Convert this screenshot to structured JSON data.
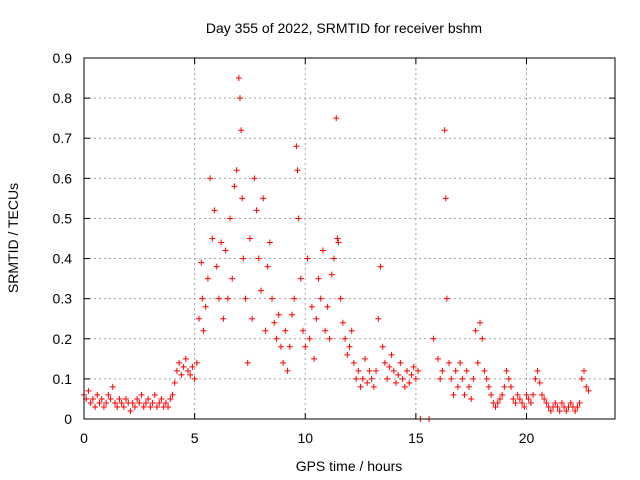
{
  "chart_data": {
    "type": "scatter",
    "title": "Day 355 of 2022, SRMTID for receiver bshm",
    "xlabel": "GPS time / hours",
    "ylabel": "SRMTID / TECUs",
    "xlim": [
      0,
      24
    ],
    "ylim": [
      0,
      0.9
    ],
    "xticks": [
      0,
      5,
      10,
      15,
      20
    ],
    "xtick_labels": [
      "0",
      "5",
      "10",
      "15",
      "20"
    ],
    "yticks": [
      0,
      0.1,
      0.2,
      0.3,
      0.4,
      0.5,
      0.6,
      0.7,
      0.8,
      0.9
    ],
    "ytick_labels": [
      "0",
      "0.1",
      "0.2",
      "0.3",
      "0.4",
      "0.5",
      "0.6",
      "0.7",
      "0.8",
      "0.9"
    ],
    "grid": true,
    "marker": "+",
    "color": "#ff0000",
    "series": [
      {
        "name": "SRMTID",
        "x": [
          0.0,
          0.1,
          0.2,
          0.3,
          0.4,
          0.5,
          0.6,
          0.7,
          0.8,
          0.9,
          1.0,
          1.1,
          1.2,
          1.3,
          1.4,
          1.5,
          1.6,
          1.7,
          1.8,
          1.9,
          2.0,
          2.1,
          2.2,
          2.3,
          2.4,
          2.5,
          2.6,
          2.7,
          2.8,
          2.9,
          3.0,
          3.1,
          3.2,
          3.3,
          3.4,
          3.5,
          3.6,
          3.7,
          3.8,
          3.9,
          4.0,
          4.1,
          4.2,
          4.3,
          4.4,
          4.5,
          4.6,
          4.7,
          4.8,
          4.9,
          5.0,
          5.1,
          5.2,
          5.3,
          5.35,
          5.4,
          5.5,
          5.6,
          5.7,
          5.8,
          5.9,
          6.0,
          6.1,
          6.2,
          6.3,
          6.4,
          6.5,
          6.6,
          6.7,
          6.8,
          6.9,
          7.0,
          7.05,
          7.1,
          7.15,
          7.2,
          7.3,
          7.4,
          7.5,
          7.6,
          7.7,
          7.8,
          7.9,
          8.0,
          8.1,
          8.2,
          8.3,
          8.4,
          8.5,
          8.6,
          8.7,
          8.8,
          8.9,
          9.0,
          9.1,
          9.2,
          9.3,
          9.4,
          9.5,
          9.6,
          9.65,
          9.7,
          9.8,
          9.9,
          10.0,
          10.1,
          10.2,
          10.3,
          10.4,
          10.5,
          10.6,
          10.7,
          10.8,
          10.9,
          11.0,
          11.1,
          11.2,
          11.3,
          11.4,
          11.45,
          11.5,
          11.6,
          11.7,
          11.8,
          11.9,
          12.0,
          12.1,
          12.2,
          12.3,
          12.4,
          12.5,
          12.6,
          12.7,
          12.8,
          12.9,
          13.0,
          13.1,
          13.2,
          13.3,
          13.4,
          13.5,
          13.6,
          13.7,
          13.8,
          13.9,
          14.0,
          14.1,
          14.2,
          14.3,
          14.4,
          14.5,
          14.6,
          14.7,
          14.8,
          14.9,
          15.0,
          15.1,
          15.2,
          15.6,
          15.8,
          16.0,
          16.1,
          16.2,
          16.3,
          16.35,
          16.4,
          16.5,
          16.6,
          16.7,
          16.8,
          16.9,
          17.0,
          17.1,
          17.2,
          17.3,
          17.4,
          17.5,
          17.6,
          17.7,
          17.8,
          17.9,
          18.0,
          18.1,
          18.2,
          18.3,
          18.4,
          18.5,
          18.6,
          18.7,
          18.8,
          18.9,
          19.0,
          19.1,
          19.2,
          19.3,
          19.4,
          19.5,
          19.6,
          19.7,
          19.8,
          19.9,
          20.0,
          20.1,
          20.2,
          20.3,
          20.4,
          20.5,
          20.6,
          20.7,
          20.8,
          20.9,
          21.0,
          21.1,
          21.2,
          21.3,
          21.4,
          21.5,
          21.6,
          21.7,
          21.8,
          21.9,
          22.0,
          22.1,
          22.2,
          22.3,
          22.4,
          22.5,
          22.6,
          22.7,
          22.8
        ],
        "y": [
          0.06,
          0.05,
          0.07,
          0.04,
          0.05,
          0.03,
          0.06,
          0.04,
          0.05,
          0.03,
          0.04,
          0.06,
          0.05,
          0.08,
          0.04,
          0.03,
          0.05,
          0.04,
          0.03,
          0.05,
          0.04,
          0.02,
          0.04,
          0.03,
          0.05,
          0.04,
          0.06,
          0.03,
          0.04,
          0.05,
          0.03,
          0.04,
          0.06,
          0.03,
          0.04,
          0.05,
          0.03,
          0.04,
          0.03,
          0.05,
          0.06,
          0.09,
          0.12,
          0.14,
          0.11,
          0.13,
          0.15,
          0.12,
          0.11,
          0.13,
          0.1,
          0.14,
          0.25,
          0.39,
          0.3,
          0.22,
          0.28,
          0.35,
          0.6,
          0.45,
          0.52,
          0.38,
          0.3,
          0.44,
          0.25,
          0.42,
          0.3,
          0.5,
          0.35,
          0.58,
          0.62,
          0.85,
          0.8,
          0.72,
          0.55,
          0.4,
          0.3,
          0.14,
          0.45,
          0.25,
          0.6,
          0.52,
          0.4,
          0.32,
          0.55,
          0.22,
          0.38,
          0.44,
          0.3,
          0.24,
          0.2,
          0.26,
          0.18,
          0.14,
          0.22,
          0.12,
          0.18,
          0.26,
          0.3,
          0.68,
          0.62,
          0.5,
          0.35,
          0.22,
          0.18,
          0.4,
          0.2,
          0.28,
          0.15,
          0.25,
          0.35,
          0.3,
          0.42,
          0.22,
          0.28,
          0.2,
          0.36,
          0.4,
          0.75,
          0.45,
          0.44,
          0.3,
          0.24,
          0.2,
          0.16,
          0.18,
          0.22,
          0.14,
          0.1,
          0.12,
          0.08,
          0.1,
          0.15,
          0.09,
          0.12,
          0.1,
          0.08,
          0.12,
          0.25,
          0.38,
          0.18,
          0.14,
          0.1,
          0.13,
          0.16,
          0.12,
          0.09,
          0.11,
          0.14,
          0.1,
          0.08,
          0.12,
          0.09,
          0.11,
          0.13,
          0.1,
          0.12,
          0.0,
          0.0,
          0.2,
          0.15,
          0.1,
          0.12,
          0.72,
          0.55,
          0.3,
          0.14,
          0.1,
          0.06,
          0.12,
          0.08,
          0.14,
          0.1,
          0.06,
          0.12,
          0.08,
          0.05,
          0.1,
          0.22,
          0.14,
          0.24,
          0.2,
          0.12,
          0.1,
          0.08,
          0.06,
          0.04,
          0.03,
          0.04,
          0.05,
          0.06,
          0.08,
          0.12,
          0.1,
          0.08,
          0.05,
          0.04,
          0.06,
          0.05,
          0.04,
          0.03,
          0.06,
          0.05,
          0.04,
          0.06,
          0.1,
          0.12,
          0.09,
          0.06,
          0.05,
          0.04,
          0.03,
          0.02,
          0.03,
          0.04,
          0.03,
          0.02,
          0.04,
          0.03,
          0.02,
          0.03,
          0.04,
          0.03,
          0.02,
          0.03,
          0.04,
          0.1,
          0.12,
          0.08,
          0.07
        ]
      }
    ]
  }
}
